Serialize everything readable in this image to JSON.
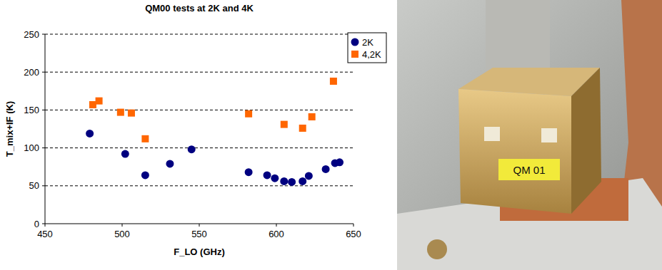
{
  "chart_data": {
    "type": "scatter",
    "title": "QM00 tests at 2K and 4K",
    "x_label": "F_LO (GHz)",
    "y_label": "T_mix+IF (K)",
    "xlim": [
      450,
      650
    ],
    "xticks": [
      450,
      500,
      550,
      600,
      650
    ],
    "ylim": [
      0,
      250
    ],
    "yticks": [
      0,
      50,
      100,
      150,
      200,
      250
    ],
    "grid": true,
    "legend": "top-right",
    "series": [
      {
        "name": "2K",
        "color": "#000080",
        "marker": "circle",
        "x": [
          479,
          502,
          515,
          531,
          545,
          582,
          594,
          599,
          605,
          610,
          617,
          621,
          632,
          638,
          641
        ],
        "values": [
          119,
          92,
          64,
          79,
          98,
          68,
          64,
          60,
          56,
          55,
          56,
          63,
          72,
          80,
          81
        ]
      },
      {
        "name": "4,2K",
        "color": "#ff6600",
        "marker": "square",
        "x": [
          481,
          485,
          499,
          506,
          515,
          582,
          605,
          617,
          623,
          637
        ],
        "values": [
          157,
          162,
          147,
          146,
          112,
          145,
          131,
          126,
          141,
          188
        ]
      }
    ]
  },
  "photo": {
    "label": "QM 01"
  }
}
